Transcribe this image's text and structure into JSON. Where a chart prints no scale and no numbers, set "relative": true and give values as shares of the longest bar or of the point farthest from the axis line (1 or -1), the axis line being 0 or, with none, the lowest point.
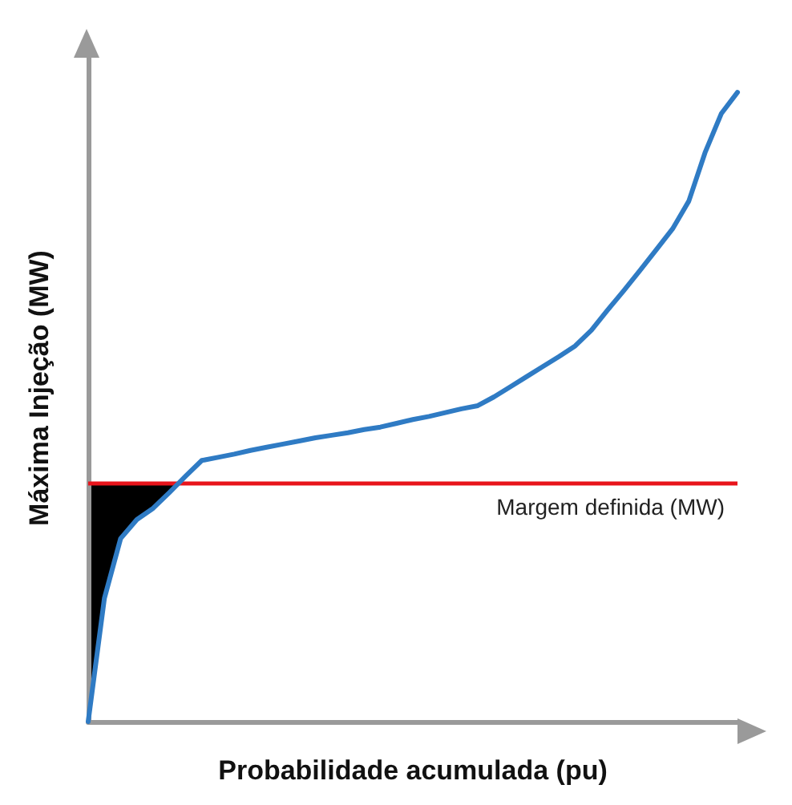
{
  "chart_data": {
    "type": "line",
    "relative": true,
    "xlabel": "Probabilidade acumulada (pu)",
    "ylabel": "Máxima Injeção (MW)",
    "grid": false,
    "marker": "none",
    "line_style": "solid",
    "categories": [
      null,
      null,
      null,
      null,
      null,
      null,
      null,
      null,
      null,
      null,
      null,
      null,
      null,
      null,
      null,
      null,
      null,
      null,
      null,
      null,
      null,
      null,
      null,
      null,
      null,
      null,
      null,
      null,
      null,
      null,
      null,
      null,
      null,
      null,
      null,
      null,
      null,
      null,
      null,
      null,
      null
    ],
    "series": [
      {
        "color": "#2f7bc4",
        "values": [
          0,
          0.196,
          0.291,
          0.321,
          0.339,
          0.364,
          0.39,
          0.415,
          0.42,
          0.425,
          0.431,
          0.436,
          0.441,
          0.446,
          0.451,
          0.455,
          0.459,
          0.464,
          0.468,
          0.474,
          0.48,
          0.485,
          0.491,
          0.497,
          0.502,
          0.516,
          0.532,
          0.548,
          0.564,
          0.58,
          0.597,
          0.622,
          0.654,
          0.685,
          0.717,
          0.75,
          0.783,
          0.827,
          0.904,
          0.966,
          1
        ]
      }
    ],
    "ref_lines": [
      {
        "axis": "y",
        "value": 0.377,
        "label": "Margem definida (MW)",
        "color": "#e8141b"
      }
    ]
  }
}
